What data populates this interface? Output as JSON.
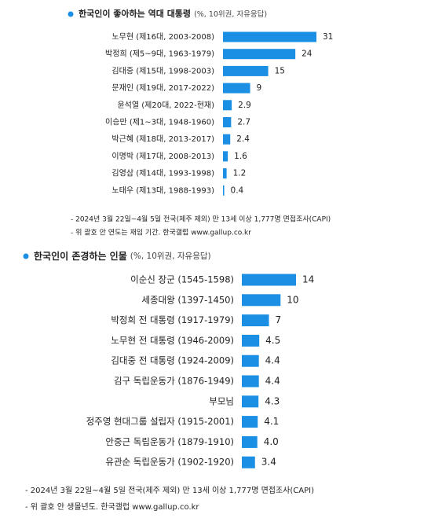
{
  "chart_data": [
    {
      "type": "bar",
      "title": "한국인이 좋아하는 역대 대통령",
      "title_note": "(%, 10위권, 자유응답)",
      "categories": [
        "노무현 (제16대, 2003-2008)",
        "박정희 (제5~9대, 1963-1979)",
        "김대중 (제15대, 1998-2003)",
        "문재인 (제19대, 2017-2022)",
        "윤석열 (제20대, 2022-현재)",
        "이승만 (제1~3대, 1948-1960)",
        "박근혜 (제18대, 2013-2017)",
        "이명박 (제17대, 2008-2013)",
        "김영삼 (제14대, 1993-1998)",
        "노태우 (제13대, 1988-1993)"
      ],
      "values": [
        31,
        24,
        15,
        9,
        2.9,
        2.7,
        2.4,
        1.6,
        1.2,
        0.4
      ],
      "color": "#1a8fe3",
      "notes": [
        "- 2024년 3월 22일~4월 5일 전국(제주 제외) 만 13세 이상 1,777명 면접조사(CAPI)",
        "- 위 괄호 안 연도는 재임 기간. 한국갤럽 www.gallup.co.kr"
      ]
    },
    {
      "type": "bar",
      "title": "한국인이 존경하는 인물",
      "title_note": "(%, 10위권, 자유응답)",
      "categories": [
        "이순신 장군 (1545-1598)",
        "세종대왕 (1397-1450)",
        "박정희 전 대통령 (1917-1979)",
        "노무현 전 대통령 (1946-2009)",
        "김대중 전 대통령 (1924-2009)",
        "김구 독립운동가 (1876-1949)",
        "부모님",
        "정주영 현대그룹 설립자 (1915-2001)",
        "안중근 독립운동가 (1879-1910)",
        "유관순 독립운동가 (1902-1920)"
      ],
      "values": [
        14,
        10,
        7,
        4.5,
        4.4,
        4.4,
        4.3,
        4.1,
        4.0,
        3.4
      ],
      "value_labels": [
        "14",
        "10",
        "7",
        "4.5",
        "4.4",
        "4.4",
        "4.3",
        "4.1",
        "4.0",
        "3.4"
      ],
      "color": "#1a8fe3",
      "notes": [
        "- 2024년 3월 22일~4월 5일 전국(제주 제외) 만 13세 이상 1,777명 면접조사(CAPI)",
        "- 위 괄호 안 생몰년도. 한국갤럽 www.gallup.co.kr"
      ]
    }
  ]
}
